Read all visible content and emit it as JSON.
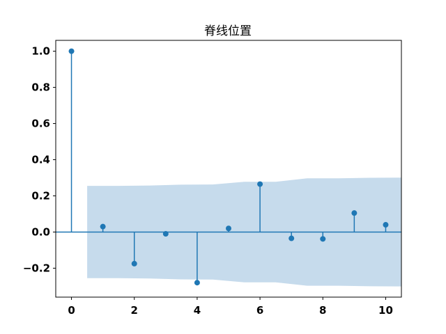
{
  "chart_data": {
    "type": "stem",
    "title": "脊线位置",
    "xlabel": "",
    "ylabel": "",
    "xlim": [
      -0.5,
      10.5
    ],
    "ylim": [
      -0.36,
      1.06
    ],
    "x_ticks": [
      0,
      2,
      4,
      6,
      8,
      10
    ],
    "y_ticks": [
      1.0,
      0.8,
      0.6,
      0.4,
      0.2,
      0.0,
      -0.2
    ],
    "y_tick_labels": [
      "1.0",
      "0.8",
      "0.6",
      "0.4",
      "0.2",
      "0.0",
      "−0.2"
    ],
    "grid": false,
    "lags": [
      0,
      1,
      2,
      3,
      4,
      5,
      6,
      7,
      8,
      9,
      10
    ],
    "values": [
      1.0,
      0.03,
      -0.175,
      -0.01,
      -0.28,
      0.02,
      0.265,
      -0.035,
      -0.038,
      0.105,
      0.04
    ],
    "confidence_band": {
      "x": [
        0.5,
        1.5,
        2.5,
        3.5,
        4.5,
        5.5,
        6.5,
        7.5,
        8.5,
        9.5,
        10.5
      ],
      "upper": [
        0.255,
        0.255,
        0.257,
        0.262,
        0.263,
        0.278,
        0.278,
        0.297,
        0.297,
        0.3,
        0.301
      ],
      "lower": [
        -0.255,
        -0.255,
        -0.257,
        -0.262,
        -0.263,
        -0.278,
        -0.278,
        -0.297,
        -0.297,
        -0.3,
        -0.301
      ]
    },
    "colors": {
      "stem": "#1f77b4",
      "band": "#c6dbec",
      "axis": "#000000"
    }
  }
}
